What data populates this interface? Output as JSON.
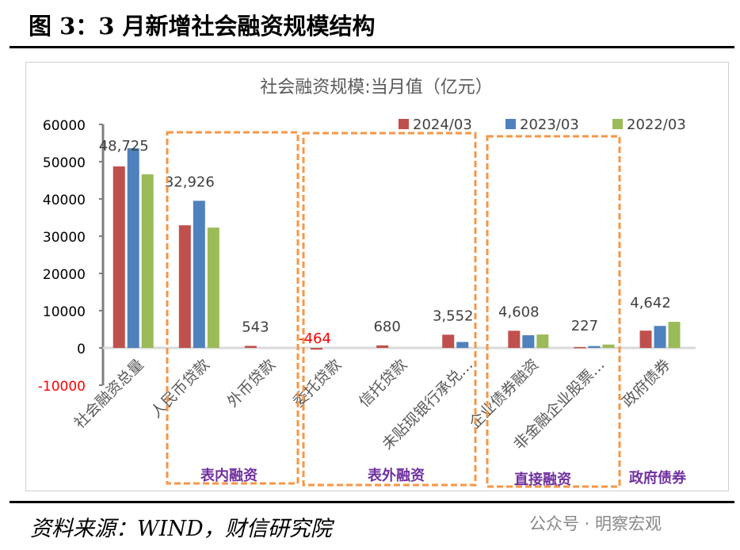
{
  "figure_title": "图 3：3 月新增社会融资规模结构",
  "source": "资料来源：WIND，财信研究院",
  "watermark": "公众号 · 明察宏观",
  "chart_data": {
    "type": "bar",
    "title": "社会融资规模:当月值（亿元）",
    "categories": [
      "社会融资总量",
      "人民币贷款",
      "外币贷款",
      "委托贷款",
      "信托贷款",
      "未贴现银行承兑…",
      "企业债券融资",
      "非金融企业股票…",
      "政府债券"
    ],
    "series": [
      {
        "name": "2024/03",
        "color": "#c0504d",
        "values": [
          48725,
          32926,
          543,
          -464,
          680,
          3552,
          4608,
          227,
          4642
        ],
        "labels": [
          "48,725",
          "32,926",
          "543",
          "-464",
          "680",
          "3,552",
          "4,608",
          "227",
          "4,642"
        ]
      },
      {
        "name": "2023/03",
        "color": "#4f81bd",
        "values": [
          53600,
          39500,
          0,
          0,
          0,
          1600,
          3400,
          500,
          5900
        ]
      },
      {
        "name": "2022/03",
        "color": "#9bbb59",
        "values": [
          46600,
          32300,
          0,
          0,
          0,
          0,
          3600,
          900,
          7000
        ]
      }
    ],
    "yticks": [
      60000,
      50000,
      40000,
      30000,
      20000,
      10000,
      0,
      -10000
    ],
    "ylim": [
      -10000,
      60000
    ],
    "legend": "top-right",
    "grid": false,
    "groups": [
      {
        "label": "表内融资",
        "from": 1,
        "to": 2,
        "boxed": true
      },
      {
        "label": "表外融资",
        "from": 3,
        "to": 5,
        "boxed": true
      },
      {
        "label": "直接融资",
        "from": 6,
        "to": 7,
        "boxed": true
      },
      {
        "label": "政府债券",
        "from": 8,
        "to": 8,
        "boxed": false
      }
    ],
    "box_color": "#f79646",
    "group_label_color": "#7030a0",
    "negative_label_color": "#ff0000"
  }
}
